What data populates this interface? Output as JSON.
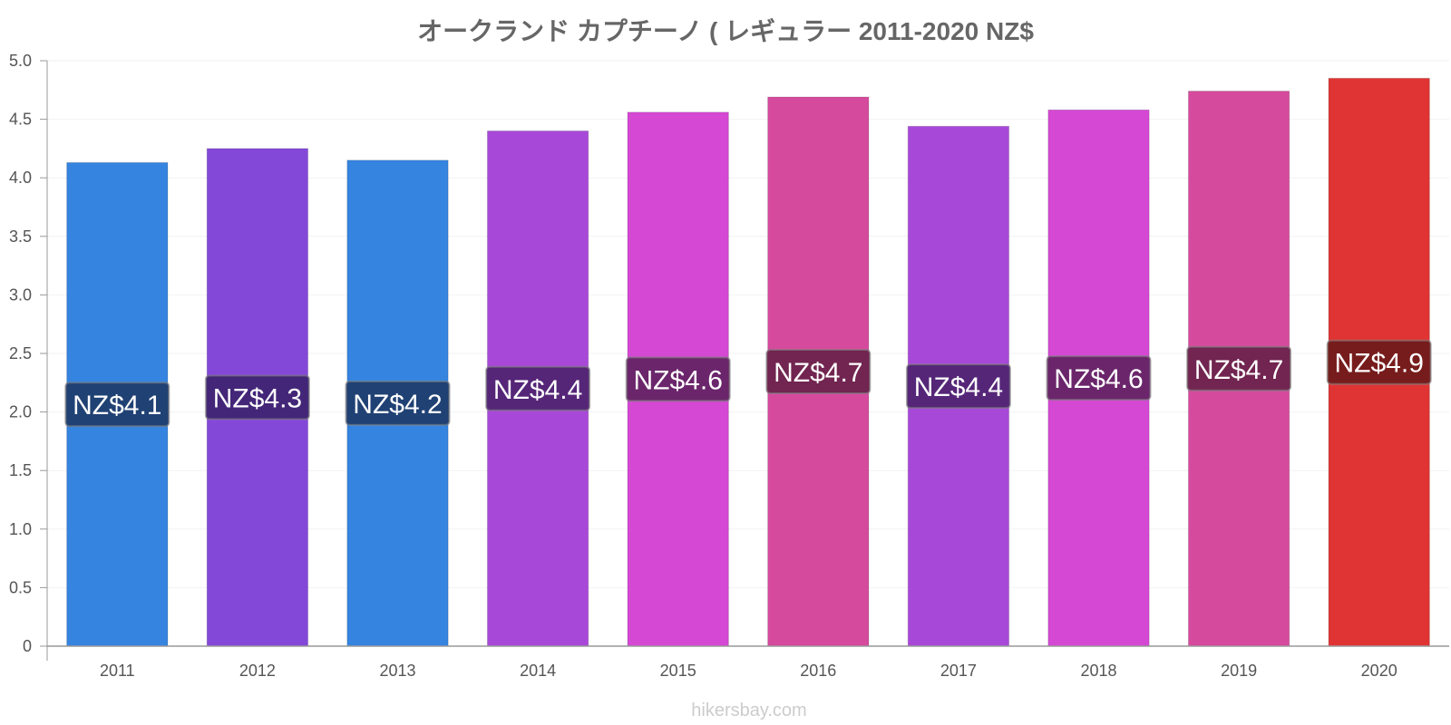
{
  "chart_data": {
    "type": "bar",
    "title": "オークランド カプチーノ ( レギュラー 2011-2020 NZ$",
    "xlabel": "",
    "ylabel": "",
    "categories": [
      "2011",
      "2012",
      "2013",
      "2014",
      "2015",
      "2016",
      "2017",
      "2018",
      "2019",
      "2020"
    ],
    "values": [
      4.13,
      4.25,
      4.15,
      4.4,
      4.56,
      4.69,
      4.44,
      4.58,
      4.74,
      4.85
    ],
    "data_labels": [
      "NZ$4.1",
      "NZ$4.3",
      "NZ$4.2",
      "NZ$4.4",
      "NZ$4.6",
      "NZ$4.7",
      "NZ$4.4",
      "NZ$4.6",
      "NZ$4.7",
      "NZ$4.9"
    ],
    "bar_colors": [
      "#3584e0",
      "#8448d9",
      "#3584e0",
      "#a848d9",
      "#d548d4",
      "#d64a9e",
      "#a848d9",
      "#d548d4",
      "#d64a9e",
      "#e03434"
    ],
    "label_bg_colors": [
      "#1e3c6a",
      "#3e2470",
      "#1e3c6a",
      "#4e2470",
      "#622462",
      "#68224a",
      "#4e2470",
      "#622462",
      "#68224a",
      "#6e1a1a"
    ],
    "ylim": [
      0,
      5
    ],
    "yticks": [
      0,
      0.5,
      1.0,
      1.5,
      2.0,
      2.5,
      3.0,
      3.5,
      4.0,
      4.5,
      5.0
    ],
    "ytick_labels": [
      "0",
      "0.5",
      "1.0",
      "1.5",
      "2.0",
      "2.5",
      "3.0",
      "3.5",
      "4.0",
      "4.5",
      "5.0"
    ],
    "grid": true,
    "legend": "none"
  },
  "watermark": "hikersbay.com"
}
